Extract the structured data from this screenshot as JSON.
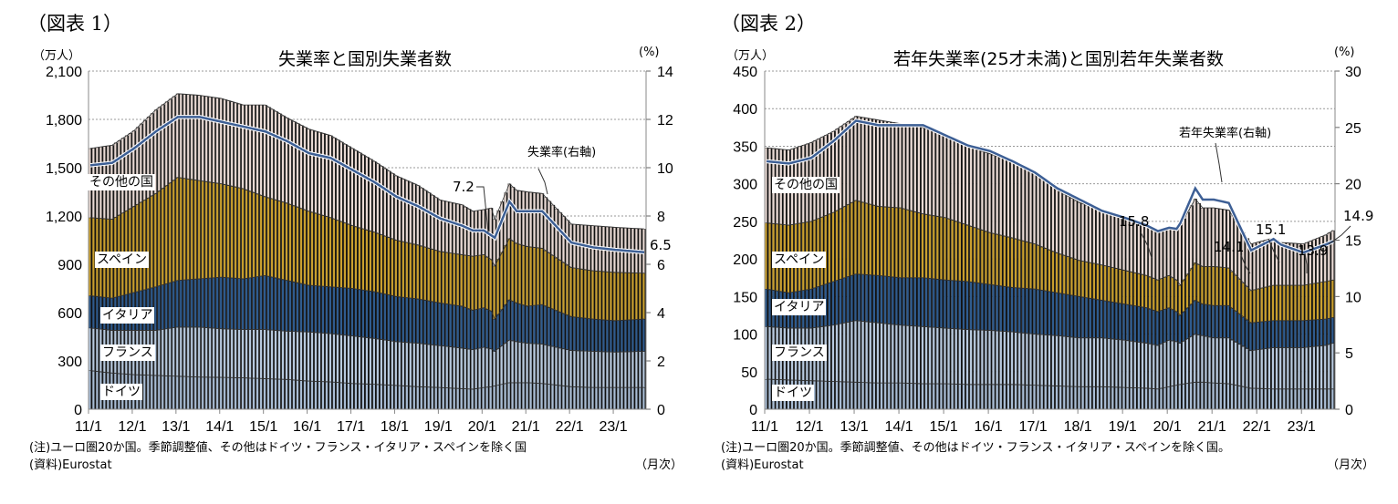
{
  "chart_data": [
    {
      "type": "bar",
      "stacked": true,
      "figure_label": "（図表 1）",
      "title": "失業率と国別失業者数",
      "ylabel": "（万人）",
      "y2label": "(%)",
      "xlabel": "（月次）",
      "ylim": [
        0,
        2100
      ],
      "y2lim": [
        0,
        14
      ],
      "yticks": [
        "0",
        "300",
        "600",
        "900",
        "1,200",
        "1,500",
        "1,800",
        "2,100"
      ],
      "y2ticks": [
        "0",
        "2",
        "4",
        "6",
        "8",
        "10",
        "12",
        "14"
      ],
      "xticks": [
        "11/1",
        "12/1",
        "13/1",
        "14/1",
        "15/1",
        "16/1",
        "17/1",
        "18/1",
        "19/1",
        "20/1",
        "21/1",
        "22/1",
        "23/1"
      ],
      "x_start": "2011/1",
      "n_months": 153,
      "x_month_index": [
        0,
        6,
        12,
        18,
        24,
        30,
        36,
        42,
        48,
        54,
        60,
        66,
        72,
        78,
        84,
        90,
        96,
        102,
        105,
        108,
        110,
        111,
        115,
        117,
        120,
        124,
        132,
        138,
        144,
        152
      ],
      "series": [
        {
          "name": "ドイツ",
          "color": "#a8bcd4",
          "values": [
            240,
            225,
            215,
            210,
            205,
            200,
            198,
            195,
            190,
            185,
            175,
            170,
            160,
            155,
            148,
            140,
            135,
            128,
            125,
            135,
            140,
            145,
            165,
            165,
            165,
            160,
            140,
            135,
            135,
            135
          ]
        },
        {
          "name": "フランス",
          "color": "#b7c9de",
          "values": [
            265,
            265,
            275,
            280,
            305,
            310,
            302,
            300,
            305,
            300,
            305,
            300,
            295,
            285,
            272,
            270,
            260,
            252,
            245,
            250,
            235,
            215,
            265,
            255,
            245,
            245,
            225,
            225,
            220,
            225
          ]
        },
        {
          "name": "イタリア",
          "color": "#2f5b8e",
          "values": [
            200,
            200,
            235,
            270,
            290,
            300,
            320,
            315,
            335,
            315,
            290,
            290,
            295,
            290,
            280,
            275,
            265,
            260,
            245,
            245,
            235,
            200,
            250,
            240,
            230,
            245,
            210,
            200,
            195,
            200
          ]
        },
        {
          "name": "スペイン",
          "color": "#c99f2e",
          "values": [
            485,
            490,
            535,
            580,
            640,
            610,
            580,
            560,
            490,
            480,
            460,
            430,
            390,
            370,
            350,
            335,
            320,
            320,
            335,
            330,
            320,
            330,
            380,
            370,
            370,
            350,
            305,
            300,
            300,
            285
          ]
        },
        {
          "name": "その他の国",
          "color": "#e8d9d3",
          "values": [
            430,
            460,
            470,
            520,
            520,
            530,
            530,
            520,
            570,
            530,
            510,
            510,
            480,
            440,
            400,
            370,
            320,
            310,
            280,
            280,
            320,
            290,
            340,
            330,
            340,
            340,
            270,
            280,
            280,
            275
          ]
        }
      ],
      "line": {
        "name": "失業率（右軸）",
        "color": "#3d5f95",
        "values": [
          10.1,
          10.2,
          10.8,
          11.5,
          12.1,
          12.1,
          11.9,
          11.7,
          11.5,
          11.1,
          10.6,
          10.4,
          9.9,
          9.4,
          8.8,
          8.4,
          7.9,
          7.6,
          7.4,
          7.4,
          7.2,
          7.1,
          8.6,
          8.2,
          8.2,
          8.2,
          6.9,
          6.7,
          6.6,
          6.5
        ]
      },
      "annotations": [
        "7.2",
        "6.5",
        "失業率(右軸)"
      ],
      "notes": [
        "(注)ユーロ圏20か国。季節調整値、その他はドイツ・フランス・イタリア・スペインを除く国",
        "(資料)Eurostat"
      ]
    },
    {
      "type": "bar",
      "stacked": true,
      "figure_label": "（図表 2）",
      "title": "若年失業率(25才未満)と国別若年失業者数",
      "ylabel": "（万人）",
      "y2label": "(%)",
      "xlabel": "（月次）",
      "ylim": [
        0,
        450
      ],
      "y2lim": [
        0,
        30
      ],
      "yticks": [
        "0",
        "50",
        "100",
        "150",
        "200",
        "250",
        "300",
        "350",
        "400",
        "450"
      ],
      "y2ticks": [
        "0",
        "5",
        "10",
        "15",
        "20",
        "25",
        "30"
      ],
      "xticks": [
        "11/1",
        "12/1",
        "13/1",
        "14/1",
        "15/1",
        "16/1",
        "17/1",
        "18/1",
        "19/1",
        "20/1",
        "21/1",
        "22/1",
        "23/1"
      ],
      "x_start": "2011/1",
      "n_months": 153,
      "x_month_index": [
        0,
        6,
        12,
        18,
        24,
        30,
        36,
        42,
        48,
        54,
        60,
        66,
        72,
        78,
        84,
        90,
        96,
        102,
        105,
        108,
        110,
        111,
        115,
        117,
        120,
        124,
        130,
        136,
        138,
        144,
        150,
        152
      ],
      "series": [
        {
          "name": "ドイツ",
          "color": "#a8bcd4",
          "values": [
            40,
            39,
            38,
            37,
            36,
            35,
            35,
            34,
            34,
            33,
            33,
            33,
            32,
            31,
            30,
            30,
            29,
            28,
            27,
            30,
            32,
            33,
            36,
            36,
            35,
            34,
            28,
            27,
            27,
            27,
            27,
            27
          ]
        },
        {
          "name": "フランス",
          "color": "#b7c9de",
          "values": [
            70,
            69,
            70,
            75,
            82,
            80,
            77,
            76,
            74,
            73,
            72,
            70,
            68,
            67,
            65,
            65,
            63,
            60,
            58,
            62,
            58,
            55,
            64,
            62,
            60,
            61,
            50,
            55,
            55,
            55,
            58,
            61
          ]
        },
        {
          "name": "イタリア",
          "color": "#2f5b8e",
          "values": [
            50,
            47,
            52,
            58,
            62,
            63,
            63,
            65,
            64,
            64,
            61,
            59,
            60,
            57,
            55,
            50,
            48,
            47,
            45,
            43,
            40,
            37,
            45,
            42,
            43,
            43,
            37,
            36,
            36,
            36,
            35,
            34
          ]
        },
        {
          "name": "スペイン",
          "color": "#c99f2e",
          "values": [
            88,
            90,
            90,
            92,
            98,
            92,
            93,
            85,
            83,
            75,
            69,
            66,
            60,
            53,
            48,
            47,
            45,
            43,
            42,
            43,
            42,
            40,
            50,
            50,
            52,
            50,
            43,
            47,
            47,
            47,
            50,
            50
          ]
        },
        {
          "name": "その他の国",
          "color": "#e8d9d3",
          "values": [
            100,
            100,
            105,
            108,
            112,
            115,
            112,
            115,
            110,
            105,
            105,
            102,
            95,
            84,
            77,
            73,
            70,
            67,
            63,
            62,
            66,
            80,
            85,
            78,
            78,
            77,
            62,
            63,
            57,
            55,
            62,
            66
          ]
        }
      ],
      "line": {
        "name": "若年失業率（右軸）",
        "color": "#3d5f95",
        "values": [
          22.0,
          21.8,
          22.3,
          23.8,
          25.6,
          25.2,
          25.2,
          25.2,
          24.3,
          23.4,
          22.9,
          22.0,
          21.0,
          19.6,
          18.6,
          17.6,
          17.0,
          16.3,
          15.8,
          16.1,
          16.0,
          16.5,
          19.6,
          18.6,
          18.6,
          18.3,
          14.1,
          15.1,
          14.6,
          13.9,
          14.6,
          14.9
        ]
      },
      "annotations": [
        "15.8",
        "14.1",
        "15.1",
        "13.9",
        "14.9",
        "若年失業率(右軸)"
      ],
      "notes": [
        "(注)ユーロ圏20か国。季節調整値、その他はドイツ・フランス・イタリア・スペインを除く国。",
        "(資料)Eurostat"
      ]
    }
  ]
}
